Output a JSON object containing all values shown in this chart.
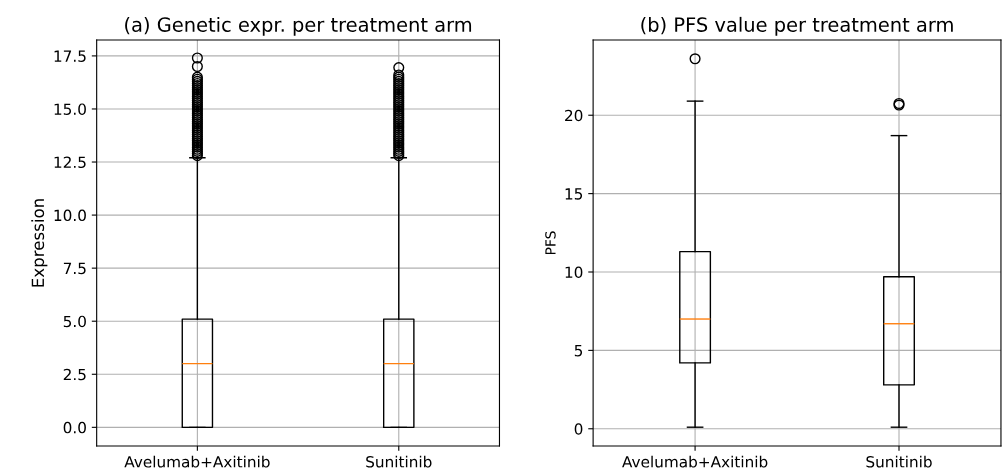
{
  "chart_data": [
    {
      "type": "box",
      "title": "(a) Genetic expr. per treatment arm",
      "ylabel": "Expression",
      "categories": [
        "Avelumab+Axitinib",
        "Sunitinib"
      ],
      "ylim": [
        -0.88,
        18.25
      ],
      "yticks": [
        {
          "value": 0,
          "label": "0.0"
        },
        {
          "value": 2.5,
          "label": "2.5"
        },
        {
          "value": 5,
          "label": "5.0"
        },
        {
          "value": 7.5,
          "label": "7.5"
        },
        {
          "value": 10,
          "label": "10.0"
        },
        {
          "value": 12.5,
          "label": "12.5"
        },
        {
          "value": 15,
          "label": "15.0"
        },
        {
          "value": 17.5,
          "label": "17.5"
        }
      ],
      "grid": true,
      "boxes": [
        {
          "low": 0,
          "q1": 0,
          "median": 3.0,
          "q3": 5.1,
          "high": 12.7,
          "outliers": [
            12.8,
            12.9,
            13.0,
            13.1,
            13.2,
            13.3,
            13.4,
            13.5,
            13.6,
            13.7,
            13.8,
            13.9,
            14.0,
            14.1,
            14.2,
            14.3,
            14.4,
            14.5,
            14.6,
            14.7,
            14.8,
            14.9,
            15.0,
            15.1,
            15.2,
            15.3,
            15.4,
            15.5,
            15.6,
            15.7,
            15.8,
            15.9,
            16.0,
            16.1,
            16.2,
            16.3,
            16.4,
            16.5,
            17.0,
            17.4
          ]
        },
        {
          "low": 0,
          "q1": 0,
          "median": 3.0,
          "q3": 5.1,
          "high": 12.7,
          "outliers": [
            12.8,
            12.9,
            13.0,
            13.1,
            13.2,
            13.3,
            13.4,
            13.5,
            13.6,
            13.7,
            13.8,
            13.9,
            14.0,
            14.1,
            14.2,
            14.3,
            14.4,
            14.5,
            14.6,
            14.7,
            14.8,
            14.9,
            15.0,
            15.1,
            15.2,
            15.3,
            15.4,
            15.5,
            15.6,
            15.7,
            15.8,
            15.9,
            16.0,
            16.1,
            16.2,
            16.3,
            16.4,
            16.5,
            16.6,
            16.95
          ]
        }
      ]
    },
    {
      "type": "box",
      "title": "(b) PFS value per treatment arm",
      "ylabel": "PFS",
      "categories": [
        "Avelumab+Axitinib",
        "Sunitinib"
      ],
      "ylim": [
        -1.1,
        24.8
      ],
      "yticks": [
        0,
        5,
        10,
        15,
        20
      ],
      "grid": true,
      "boxes": [
        {
          "low": 0.1,
          "q1": 4.2,
          "median": 7.0,
          "q3": 11.3,
          "high": 20.9,
          "outliers": [
            23.6
          ]
        },
        {
          "low": 0.1,
          "q1": 2.8,
          "median": 6.7,
          "q3": 9.7,
          "high": 18.7,
          "outliers": [
            20.65,
            20.75
          ]
        }
      ]
    }
  ]
}
